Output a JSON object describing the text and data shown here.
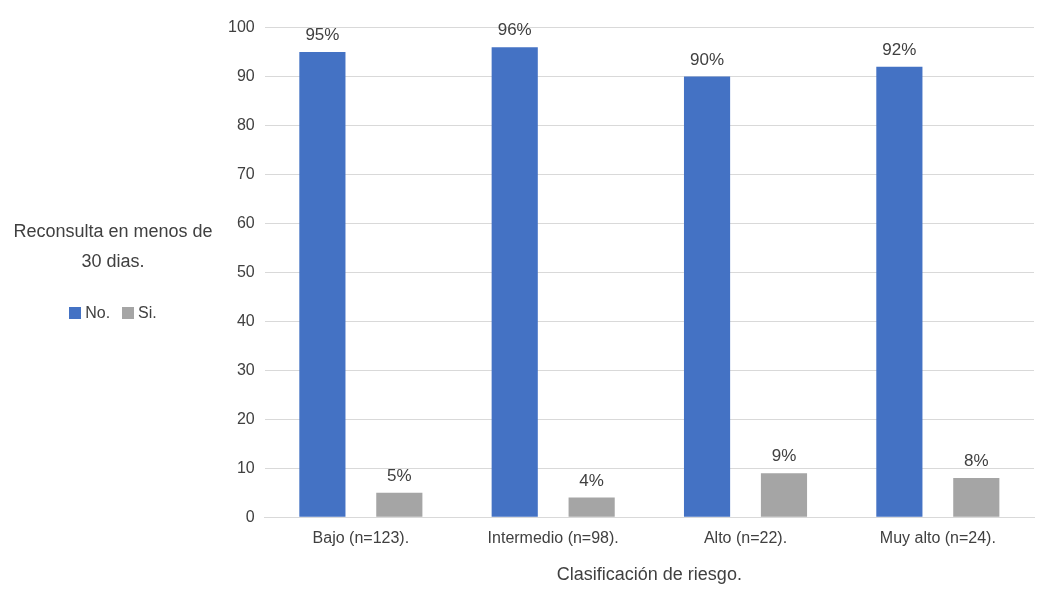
{
  "chart_data": {
    "type": "bar",
    "xlabel": "Clasificación de riesgo.",
    "legend_title": "Reconsulta en menos de 30 dias.",
    "categories": [
      "Bajo (n=123).",
      "Intermedio (n=98).",
      "Alto (n=22).",
      "Muy alto (n=24)."
    ],
    "series": [
      {
        "name": "No.",
        "color": "#4472c4",
        "values": [
          95,
          96,
          90,
          92
        ],
        "value_labels": [
          "95%",
          "96%",
          "90%",
          "92%"
        ]
      },
      {
        "name": "Si.",
        "color": "#a5a5a5",
        "values": [
          5,
          4,
          9,
          8
        ],
        "value_labels": [
          "5%",
          "4%",
          "9%",
          "8%"
        ]
      }
    ],
    "ylim": [
      0,
      100
    ],
    "yticks": [
      0,
      10,
      20,
      30,
      40,
      50,
      60,
      70,
      80,
      90,
      100
    ],
    "grid": "y",
    "legend": "left"
  }
}
